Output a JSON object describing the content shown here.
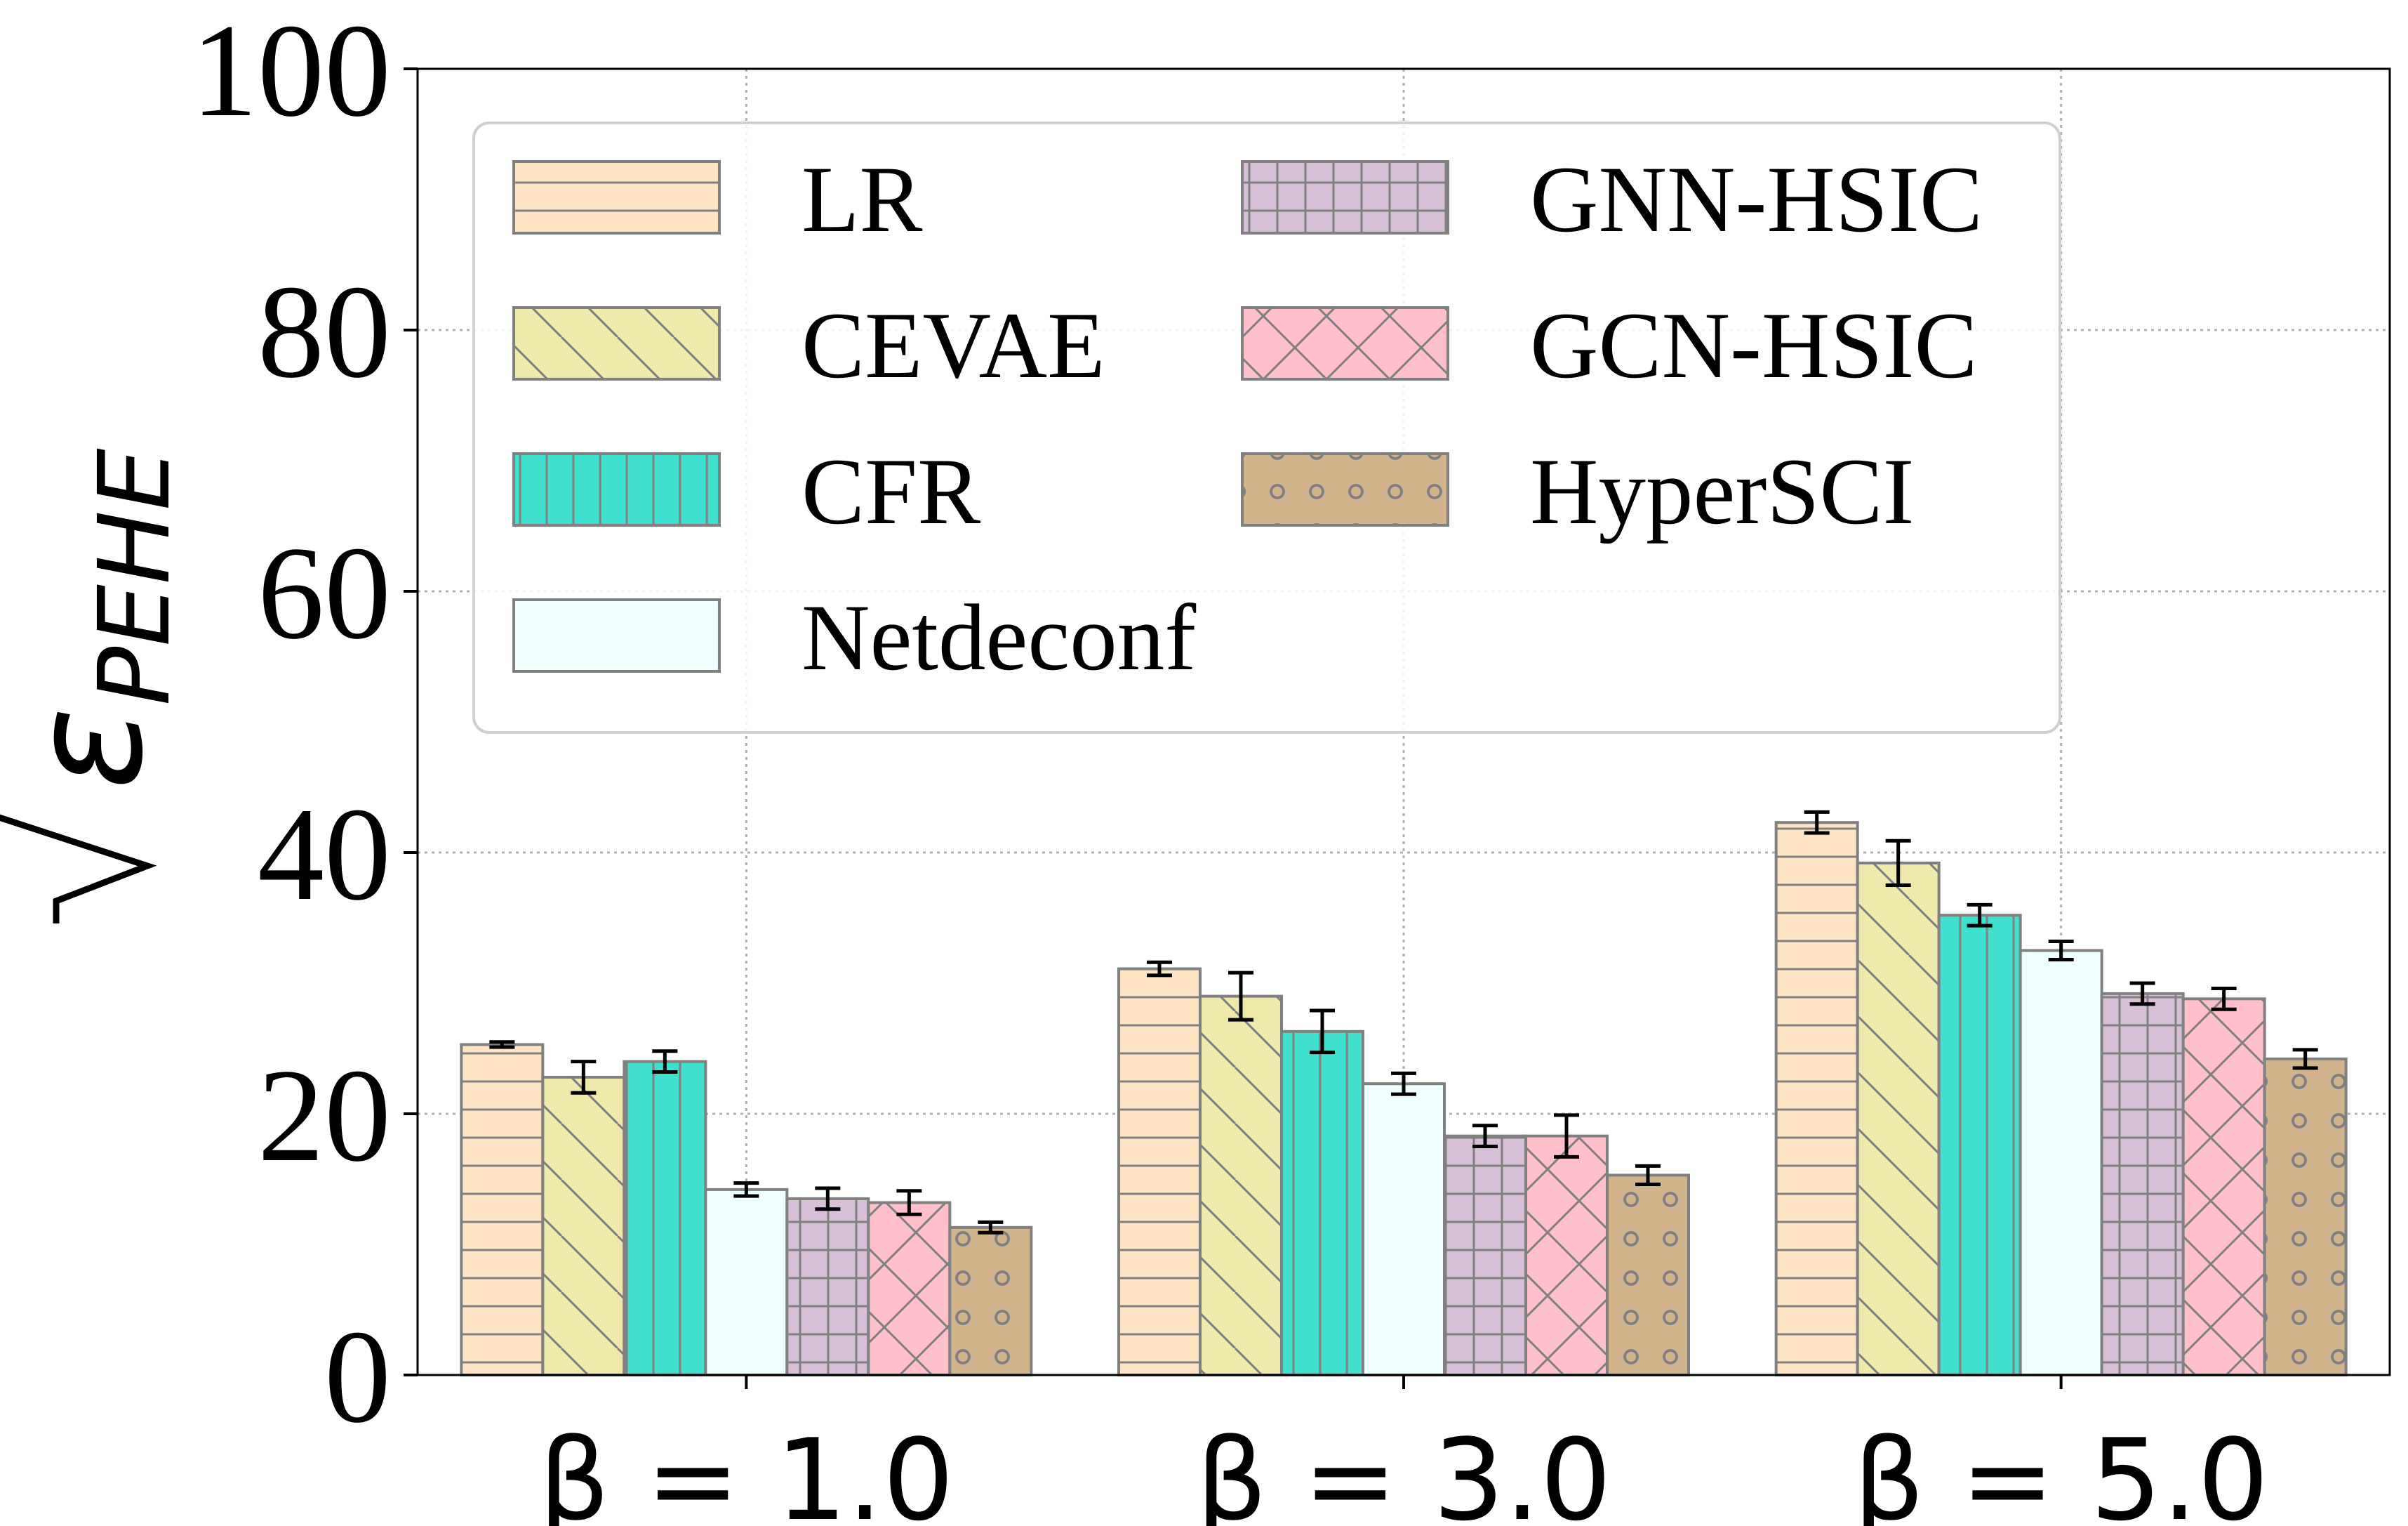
{
  "chart_data": {
    "type": "bar",
    "ylabel_symbol": "ε",
    "ylabel_subscript": "PEHE",
    "ylabel_radical": "√",
    "categories": [
      "β = 1.0",
      "β = 3.0",
      "β = 5.0"
    ],
    "ylim": [
      0,
      100
    ],
    "yticks": [
      0,
      20,
      40,
      60,
      80,
      100
    ],
    "grid": true,
    "legend_position": "top-left",
    "series": [
      {
        "name": "LR",
        "values": [
          25.3,
          31.1,
          42.3
        ],
        "errors": [
          0.2,
          0.5,
          0.8
        ],
        "color": "#FFE4C4",
        "hatch": "horizontal"
      },
      {
        "name": "CEVAE",
        "values": [
          22.8,
          29.0,
          39.2
        ],
        "errors": [
          1.2,
          1.8,
          1.7
        ],
        "color": "#EEE8AA",
        "hatch": "diagonal"
      },
      {
        "name": "CFR",
        "values": [
          24.0,
          26.3,
          35.2
        ],
        "errors": [
          0.8,
          1.6,
          0.8
        ],
        "color": "#40E0D0",
        "hatch": "vertical"
      },
      {
        "name": "Netdeconf",
        "values": [
          14.2,
          22.3,
          32.5
        ],
        "errors": [
          0.5,
          0.8,
          0.7
        ],
        "color": "#F0FFFF",
        "hatch": "none"
      },
      {
        "name": "GNN-HSIC",
        "values": [
          13.5,
          18.3,
          29.2
        ],
        "errors": [
          0.8,
          0.8,
          0.8
        ],
        "color": "#D8BFD8",
        "hatch": "grid"
      },
      {
        "name": "GCN-HSIC",
        "values": [
          13.2,
          18.3,
          28.8
        ],
        "errors": [
          0.9,
          1.6,
          0.8
        ],
        "color": "#FFC0CB",
        "hatch": "cross"
      },
      {
        "name": "HyperSCI",
        "values": [
          11.3,
          15.3,
          24.2
        ],
        "errors": [
          0.4,
          0.7,
          0.7
        ],
        "color": "#D2B48C",
        "hatch": "circles"
      }
    ]
  }
}
